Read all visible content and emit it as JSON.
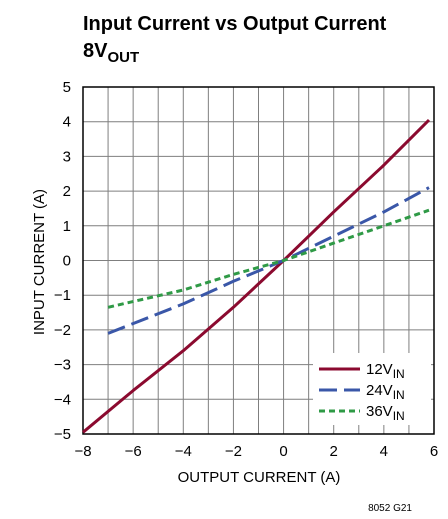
{
  "chart_data": {
    "type": "line",
    "title": "Input Current vs Output Current",
    "subtitle_main": "8V",
    "subtitle_sub": "OUT",
    "xlabel": "OUTPUT CURRENT (A)",
    "ylabel": "INPUT CURRENT (A)",
    "xlim": [
      -8,
      6
    ],
    "ylim": [
      -5,
      5
    ],
    "x_ticks": [
      -8,
      -6,
      -4,
      -2,
      0,
      2,
      4,
      6
    ],
    "x_tick_labels": [
      "−8",
      "−6",
      "−4",
      "−2",
      "0",
      "2",
      "4",
      "6"
    ],
    "y_ticks": [
      -5,
      -4,
      -3,
      -2,
      -1,
      0,
      1,
      2,
      3,
      4,
      5
    ],
    "y_tick_labels": [
      "−5",
      "−4",
      "−3",
      "−2",
      "−1",
      "0",
      "1",
      "2",
      "3",
      "4",
      "5"
    ],
    "x_grid": [
      -8,
      -7,
      -6,
      -5,
      -4,
      -3,
      -2,
      -1,
      0,
      1,
      2,
      3,
      4,
      5,
      6
    ],
    "grid": true,
    "legend_position": "bottom-right",
    "series": [
      {
        "name_main": "12V",
        "name_sub": "IN",
        "color": "#8b0a2f",
        "dash": "solid",
        "x": [
          -8,
          -6,
          -4,
          -2,
          0,
          2,
          4,
          5.8
        ],
        "y": [
          -4.95,
          -3.75,
          -2.6,
          -1.35,
          0,
          1.4,
          2.75,
          4.05
        ]
      },
      {
        "name_main": "24V",
        "name_sub": "IN",
        "color": "#3a57a8",
        "dash": "long-dash",
        "x": [
          -7,
          -4,
          -2,
          0,
          2,
          4,
          5.8
        ],
        "y": [
          -2.1,
          -1.25,
          -0.6,
          0,
          0.7,
          1.4,
          2.1
        ]
      },
      {
        "name_main": "36V",
        "name_sub": "IN",
        "color": "#2f9a46",
        "dash": "short-dash",
        "x": [
          -7,
          -4,
          -2,
          0,
          2,
          4,
          5.8
        ],
        "y": [
          -1.35,
          -0.85,
          -0.4,
          0,
          0.5,
          1.0,
          1.45
        ]
      }
    ],
    "figure_id": "8052 G21"
  }
}
